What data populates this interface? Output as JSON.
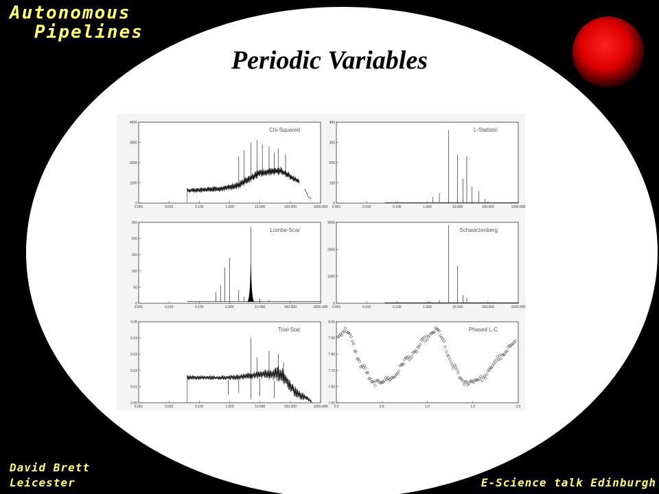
{
  "header": {
    "brand_line1": "Autonomous",
    "brand_line2": "Pipelines",
    "title": "Periodic Variables"
  },
  "footer": {
    "author": "David Brett",
    "institution": "Leicester",
    "talk": "E-Science talk Edinburgh"
  },
  "colors": {
    "background": "#000000",
    "ellipse": "#ffffff",
    "corner_text": "#ffff66",
    "orb": "#ff0000"
  },
  "icons": {
    "orb": "red-orb-icon"
  },
  "chart_data": [
    {
      "type": "line",
      "title": "Chi-Squared",
      "xscale": "log",
      "xlim": [
        0.001,
        1000.0
      ],
      "xticks": [
        "0.001",
        "0.010",
        "0.100",
        "1.000",
        "10.000",
        "100.000",
        "1000.000"
      ],
      "ylim": [
        0,
        4000
      ],
      "yticks": [
        "0",
        "1000",
        "2000",
        "3000",
        "4000"
      ],
      "band": {
        "xmin": 0.04,
        "xmax": 200,
        "y_low": [
          500,
          500,
          550,
          700,
          1300,
          1400,
          900
        ],
        "y_high": [
          750,
          780,
          850,
          1100,
          1700,
          1800,
          1200
        ],
        "x_knots": [
          0.04,
          0.1,
          0.5,
          2,
          10,
          50,
          200
        ]
      },
      "spikes": [
        {
          "x": 8,
          "y": 3100
        },
        {
          "x": 5,
          "y": 3000
        },
        {
          "x": 12,
          "y": 2900
        },
        {
          "x": 3,
          "y": 2600
        },
        {
          "x": 20,
          "y": 2800
        },
        {
          "x": 40,
          "y": 2700
        },
        {
          "x": 2,
          "y": 2300
        },
        {
          "x": 70,
          "y": 2400
        },
        {
          "x": 30,
          "y": 2500
        }
      ],
      "tail": [
        {
          "x": 300,
          "y": 700
        },
        {
          "x": 400,
          "y": 300
        },
        {
          "x": 500,
          "y": 200
        }
      ]
    },
    {
      "type": "line",
      "title": "L-Statistic",
      "xscale": "log",
      "xlim": [
        0.001,
        1000.0
      ],
      "xticks": [
        "0.001",
        "0.010",
        "0.100",
        "1.000",
        "10.000",
        "100.000",
        "1000.000"
      ],
      "ylim": [
        0,
        400
      ],
      "yticks": [
        "0",
        "100",
        "200",
        "300",
        "400"
      ],
      "spikes": [
        {
          "x": 5,
          "y": 360
        },
        {
          "x": 10,
          "y": 240
        },
        {
          "x": 2.5,
          "y": 50
        },
        {
          "x": 15,
          "y": 120
        },
        {
          "x": 20,
          "y": 230
        },
        {
          "x": 30,
          "y": 80
        },
        {
          "x": 50,
          "y": 60
        },
        {
          "x": 1.5,
          "y": 30
        },
        {
          "x": 80,
          "y": 20
        }
      ],
      "baseline": 3
    },
    {
      "type": "line",
      "title": "Lombe-Scar",
      "xscale": "log",
      "xlim": [
        0.001,
        1000.0
      ],
      "xticks": [
        "0.001",
        "0.010",
        "0.100",
        "1.000",
        "10.000",
        "100.000",
        "1000.000"
      ],
      "ylim": [
        0,
        250
      ],
      "yticks": [
        "0",
        "50",
        "100",
        "150",
        "200",
        "250"
      ],
      "spikes": [
        {
          "x": 5,
          "y": 235
        },
        {
          "x": 1,
          "y": 140
        },
        {
          "x": 0.7,
          "y": 110
        },
        {
          "x": 2,
          "y": 40
        },
        {
          "x": 0.35,
          "y": 35
        },
        {
          "x": 0.5,
          "y": 55
        },
        {
          "x": 3,
          "y": 20
        },
        {
          "x": 10,
          "y": 15
        },
        {
          "x": 20,
          "y": 10
        }
      ],
      "peak": {
        "x": 5,
        "y": 120
      },
      "baseline": 5
    },
    {
      "type": "line",
      "title": "Schwarzenberg",
      "xscale": "log",
      "xlim": [
        0.001,
        1000.0
      ],
      "xticks": [
        "0.001",
        "0.010",
        "0.100",
        "1.000",
        "10.000",
        "100.000",
        "1000.000"
      ],
      "ylim": [
        0,
        3000
      ],
      "yticks": [
        "0",
        "1000",
        "2000",
        "3000"
      ],
      "spikes": [
        {
          "x": 5,
          "y": 2900
        },
        {
          "x": 10,
          "y": 1400
        },
        {
          "x": 2.5,
          "y": 120
        },
        {
          "x": 1.2,
          "y": 80
        },
        {
          "x": 15,
          "y": 300
        },
        {
          "x": 20,
          "y": 200
        }
      ],
      "baseline": 20
    },
    {
      "type": "line",
      "title": "Trial-Stat",
      "xscale": "log",
      "xlim": [
        0.001,
        1000.0
      ],
      "xticks": [
        "0.001",
        "0.010",
        "0.100",
        "1.000",
        "10.000",
        "100.000",
        "1000.000"
      ],
      "ylim": [
        0,
        0.05
      ],
      "yticks": [
        "0.00",
        "0.01",
        "0.02",
        "0.03",
        "0.04",
        "0.05"
      ],
      "band": {
        "xmin": 0.04,
        "xmax": 500,
        "y_low": [
          0.014,
          0.014,
          0.014,
          0.014,
          0.015,
          0.013,
          0.003,
          0.0
        ],
        "y_high": [
          0.017,
          0.017,
          0.017,
          0.0175,
          0.02,
          0.023,
          0.01,
          0.002
        ],
        "x_knots": [
          0.04,
          0.1,
          0.5,
          2,
          10,
          50,
          150,
          500
        ]
      },
      "spikes": [
        {
          "x": 5,
          "y": 0.04
        },
        {
          "x": 20,
          "y": 0.032
        },
        {
          "x": 40,
          "y": 0.03
        },
        {
          "x": 8,
          "y": 0.028
        },
        {
          "x": 60,
          "y": 0.025
        }
      ],
      "dips": [
        {
          "x": 0.9,
          "y": 0.005
        },
        {
          "x": 2,
          "y": 0.006
        },
        {
          "x": 5,
          "y": 0.002
        },
        {
          "x": 10,
          "y": 0.004
        },
        {
          "x": 30,
          "y": 0.003
        }
      ]
    },
    {
      "type": "scatter",
      "title": "Phased L-C",
      "xscale": "linear",
      "xlim": [
        0,
        2.0
      ],
      "xticks": [
        "0.0",
        "0.5",
        "1.0",
        "1.5",
        "2.0"
      ],
      "ylim": [
        7.5,
        8.0
      ],
      "yticks": [
        "7.50",
        "7.60",
        "7.70",
        "7.80",
        "7.90",
        "8.00"
      ],
      "marker": "diamond",
      "curve": {
        "phase": [
          0.0,
          0.1,
          0.3,
          0.4,
          0.6,
          0.8,
          1.0
        ],
        "mag": [
          7.9,
          7.95,
          7.72,
          7.62,
          7.65,
          7.78,
          7.9
        ]
      },
      "n_points": 150,
      "scatter": 0.015
    }
  ]
}
